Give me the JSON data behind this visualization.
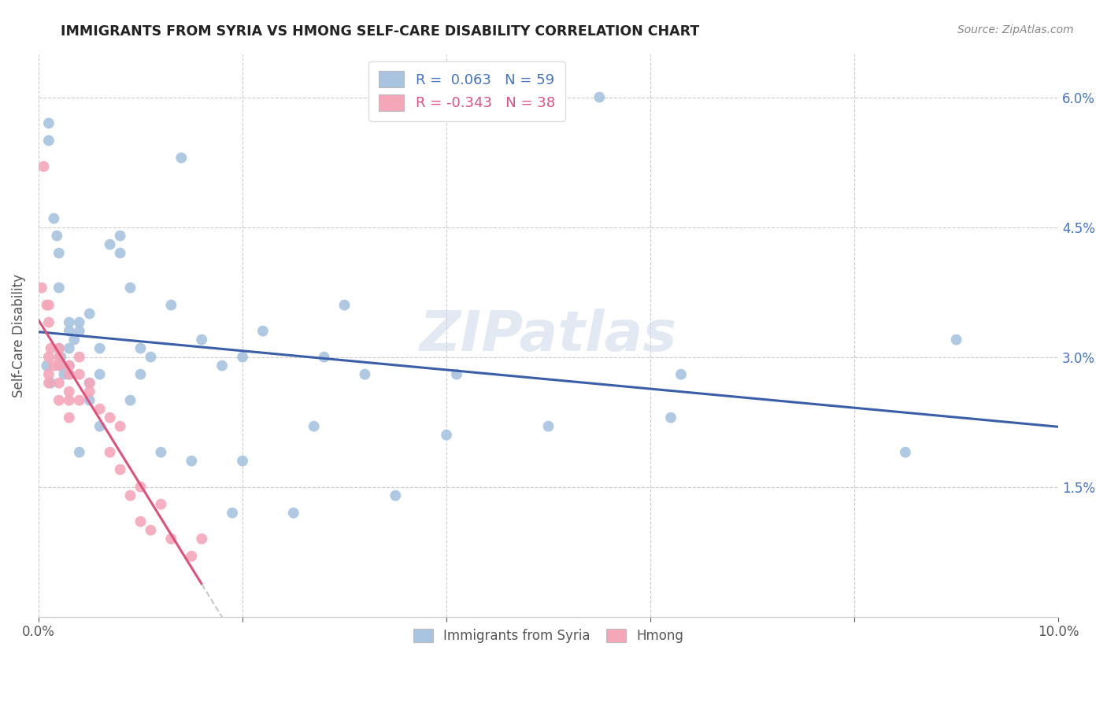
{
  "title": "IMMIGRANTS FROM SYRIA VS HMONG SELF-CARE DISABILITY CORRELATION CHART",
  "source": "Source: ZipAtlas.com",
  "ylabel": "Self-Care Disability",
  "x_min": 0.0,
  "x_max": 0.1,
  "y_min": 0.0,
  "y_max": 0.065,
  "x_ticks": [
    0.0,
    0.02,
    0.04,
    0.06,
    0.08,
    0.1
  ],
  "x_tick_labels": [
    "0.0%",
    "",
    "",
    "",
    "",
    "10.0%"
  ],
  "y_ticks": [
    0.0,
    0.015,
    0.03,
    0.045,
    0.06
  ],
  "y_tick_labels_right": [
    "",
    "1.5%",
    "3.0%",
    "4.5%",
    "6.0%"
  ],
  "syria_R": 0.063,
  "syria_N": 59,
  "hmong_R": -0.343,
  "hmong_N": 38,
  "syria_color": "#a8c4e0",
  "hmong_color": "#f4a7b9",
  "syria_line_color": "#3a5fa8",
  "hmong_line_color": "#e0507a",
  "hmong_line_dashed_color": "#c8c8c8",
  "watermark": "ZIPatlas",
  "syria_x": [
    0.0008,
    0.001,
    0.001,
    0.0012,
    0.0015,
    0.0018,
    0.002,
    0.002,
    0.002,
    0.0022,
    0.0022,
    0.0025,
    0.003,
    0.003,
    0.003,
    0.003,
    0.003,
    0.0035,
    0.004,
    0.004,
    0.004,
    0.005,
    0.005,
    0.005,
    0.006,
    0.006,
    0.006,
    0.007,
    0.008,
    0.008,
    0.009,
    0.009,
    0.01,
    0.01,
    0.011,
    0.012,
    0.013,
    0.014,
    0.015,
    0.016,
    0.018,
    0.019,
    0.02,
    0.02,
    0.022,
    0.025,
    0.027,
    0.028,
    0.03,
    0.032,
    0.035,
    0.04,
    0.041,
    0.05,
    0.055,
    0.062,
    0.063,
    0.085,
    0.09
  ],
  "syria_y": [
    0.029,
    0.057,
    0.055,
    0.027,
    0.046,
    0.044,
    0.042,
    0.038,
    0.031,
    0.03,
    0.029,
    0.028,
    0.034,
    0.033,
    0.031,
    0.029,
    0.028,
    0.032,
    0.034,
    0.033,
    0.019,
    0.027,
    0.025,
    0.035,
    0.031,
    0.028,
    0.022,
    0.043,
    0.044,
    0.042,
    0.038,
    0.025,
    0.031,
    0.028,
    0.03,
    0.019,
    0.036,
    0.053,
    0.018,
    0.032,
    0.029,
    0.012,
    0.03,
    0.018,
    0.033,
    0.012,
    0.022,
    0.03,
    0.036,
    0.028,
    0.014,
    0.021,
    0.028,
    0.022,
    0.06,
    0.023,
    0.028,
    0.019,
    0.032
  ],
  "hmong_x": [
    0.0003,
    0.0005,
    0.0008,
    0.001,
    0.001,
    0.001,
    0.001,
    0.001,
    0.0012,
    0.0015,
    0.002,
    0.002,
    0.002,
    0.002,
    0.002,
    0.003,
    0.003,
    0.003,
    0.003,
    0.003,
    0.004,
    0.004,
    0.004,
    0.005,
    0.005,
    0.006,
    0.007,
    0.007,
    0.008,
    0.008,
    0.009,
    0.01,
    0.01,
    0.011,
    0.012,
    0.013,
    0.015,
    0.016
  ],
  "hmong_y": [
    0.038,
    0.052,
    0.036,
    0.036,
    0.034,
    0.03,
    0.028,
    0.027,
    0.031,
    0.029,
    0.031,
    0.03,
    0.029,
    0.027,
    0.025,
    0.029,
    0.028,
    0.026,
    0.025,
    0.023,
    0.03,
    0.028,
    0.025,
    0.027,
    0.026,
    0.024,
    0.023,
    0.019,
    0.022,
    0.017,
    0.014,
    0.015,
    0.011,
    0.01,
    0.013,
    0.009,
    0.007,
    0.009
  ]
}
